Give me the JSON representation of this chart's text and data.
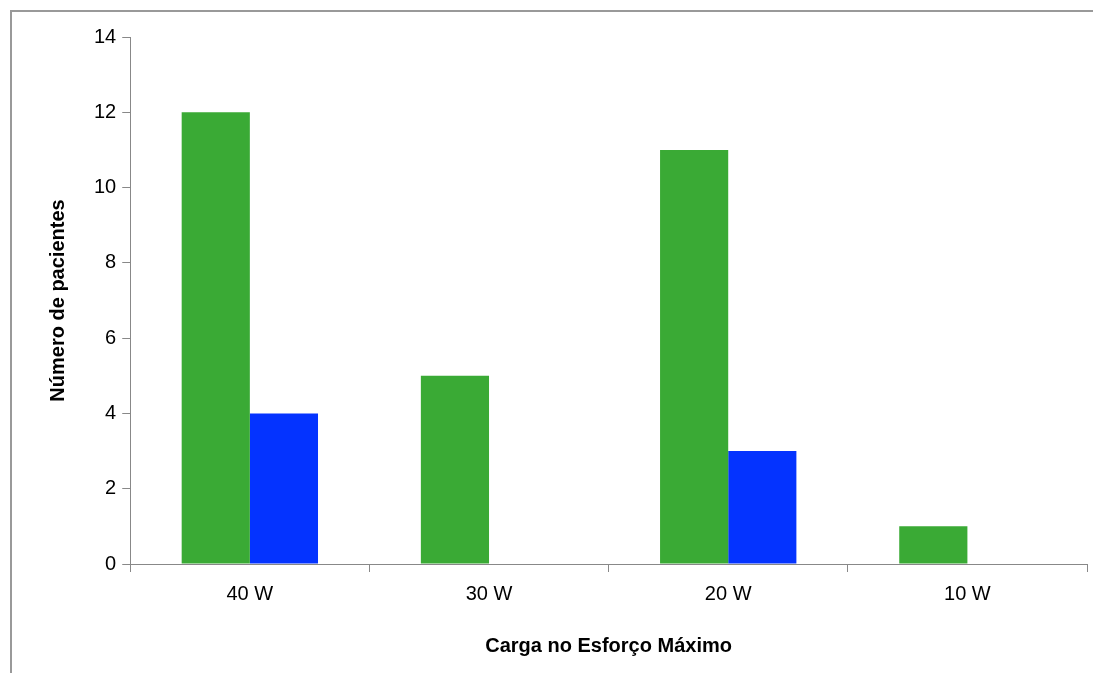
{
  "chart_data": {
    "type": "bar",
    "xlabel": "Carga no Esforço Máximo",
    "ylabel": "Número de pacientes",
    "categories": [
      "40 W",
      "30 W",
      "20 W",
      "10 W"
    ],
    "series": [
      {
        "color": "#3aaa35",
        "values": [
          12,
          5,
          11,
          1
        ]
      },
      {
        "color": "#0433ff",
        "values": [
          4,
          0,
          3,
          0
        ]
      }
    ],
    "ylim": [
      0,
      14
    ],
    "yticks": [
      0,
      2,
      4,
      6,
      8,
      10,
      12,
      14
    ]
  }
}
